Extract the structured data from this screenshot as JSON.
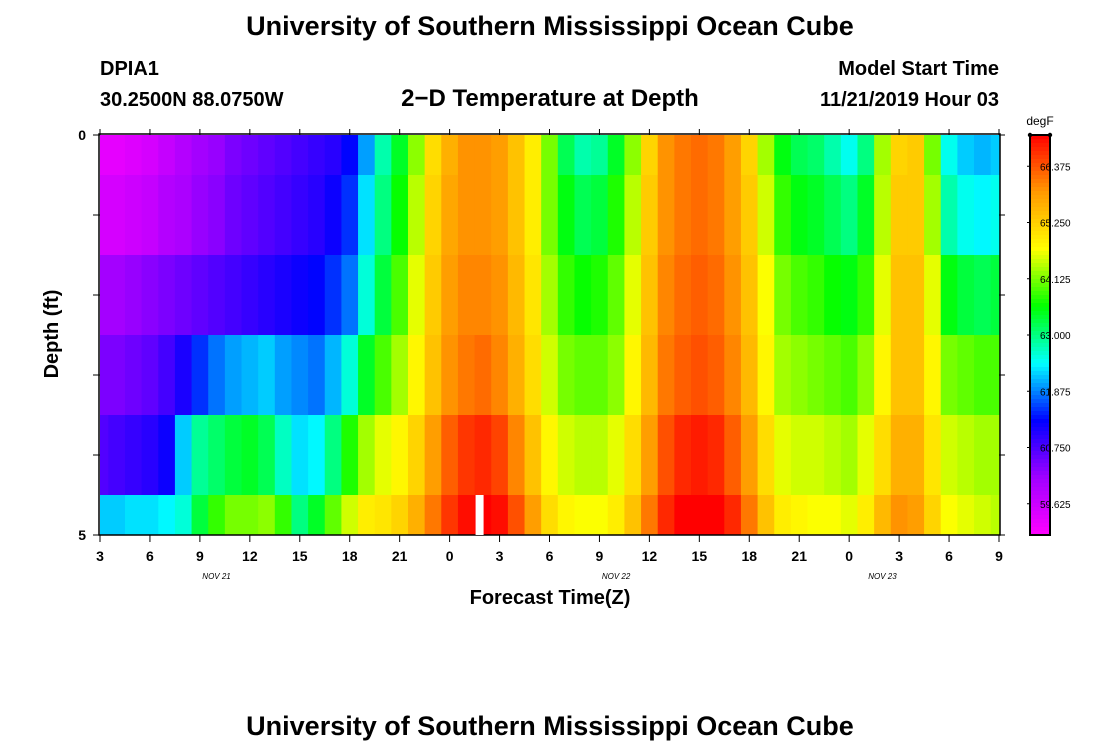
{
  "header": {
    "title": "University of Southern Mississippi Ocean Cube",
    "station": "DPIA1",
    "coords": "30.2500N 88.0750W",
    "subtitle": "2−D Temperature at Depth",
    "start_label": "Model Start Time",
    "start_value": "11/21/2019 Hour 03"
  },
  "footer": {
    "title": "University of Southern Mississippi Ocean Cube"
  },
  "colors": {
    "scale": [
      "#ff00ff",
      "#a000ff",
      "#0000ff",
      "#00ffff",
      "#00ff00",
      "#ffff00",
      "#ff9900",
      "#ff0000"
    ]
  },
  "chart_data": {
    "type": "heatmap",
    "title": "2−D Temperature at Depth",
    "xlabel": "Forecast Time(Z)",
    "ylabel": "Depth (ft)",
    "x_tick_labels": [
      "3",
      "6",
      "9",
      "12",
      "15",
      "18",
      "21",
      "0",
      "3",
      "6",
      "9",
      "12",
      "15",
      "18",
      "21",
      "0",
      "3",
      "6",
      "9"
    ],
    "date_labels": [
      {
        "label": "NOV  21",
        "at_hour": 10
      },
      {
        "label": "NOV  22",
        "at_hour": 34
      },
      {
        "label": "NOV  23",
        "at_hour": 50
      }
    ],
    "x_hours": [
      3,
      4,
      5,
      6,
      7,
      8,
      9,
      10,
      11,
      12,
      13,
      14,
      15,
      16,
      17,
      18,
      19,
      20,
      21,
      22,
      23,
      24,
      25,
      26,
      27,
      28,
      29,
      30,
      31,
      32,
      33,
      34,
      35,
      36,
      37,
      38,
      39,
      40,
      41,
      42,
      43,
      44,
      45,
      46,
      47,
      48,
      49,
      50,
      51,
      52,
      53,
      54,
      55,
      56,
      57
    ],
    "xlim": [
      3,
      57
    ],
    "y_tick_labels": [
      "0",
      "5"
    ],
    "ylim": [
      0,
      5
    ],
    "depth_rows": [
      0,
      1,
      2,
      3,
      4,
      5
    ],
    "colorbar": {
      "unit": "degF",
      "min": 59.0,
      "max": 67.0,
      "ticks": [
        66.375,
        65.25,
        64.125,
        63.0,
        61.875,
        60.75,
        59.625
      ]
    },
    "marker": {
      "hour": 25.8,
      "depth": 5
    },
    "values": [
      [
        59.3,
        59.3,
        59.4,
        59.5,
        59.7,
        59.9,
        60.1,
        60.2,
        60.4,
        60.5,
        60.6,
        60.7,
        60.8,
        60.9,
        61.0,
        61.3,
        62.0,
        62.8,
        63.4,
        64.2,
        65.1,
        65.6,
        65.9,
        65.9,
        65.8,
        65.4,
        64.9,
        64.1,
        63.2,
        62.8,
        62.9,
        63.4,
        64.2,
        65.2,
        65.9,
        66.1,
        66.2,
        66.1,
        65.8,
        65.2,
        64.3,
        63.5,
        63.2,
        63.1,
        62.8,
        62.5,
        63.0,
        64.3,
        65.2,
        65.3,
        64.1,
        62.5,
        62.2,
        62.1,
        62.2
      ],
      [
        59.5,
        59.5,
        59.6,
        59.7,
        59.9,
        60.0,
        60.2,
        60.3,
        60.5,
        60.6,
        60.7,
        60.8,
        60.9,
        61.0,
        61.2,
        61.5,
        62.3,
        63.0,
        63.6,
        64.4,
        65.2,
        65.7,
        65.9,
        65.9,
        65.8,
        65.4,
        64.9,
        64.1,
        63.5,
        63.2,
        63.3,
        63.7,
        64.4,
        65.3,
        65.9,
        66.1,
        66.2,
        66.1,
        65.8,
        65.3,
        64.5,
        63.8,
        63.5,
        63.4,
        63.2,
        63.0,
        63.4,
        64.4,
        65.3,
        65.3,
        64.3,
        62.8,
        62.5,
        62.4,
        62.5
      ],
      [
        60.1,
        60.1,
        60.2,
        60.3,
        60.4,
        60.5,
        60.6,
        60.7,
        60.8,
        60.9,
        61.0,
        61.1,
        61.2,
        61.3,
        61.5,
        61.8,
        62.6,
        63.3,
        63.9,
        64.6,
        65.3,
        65.8,
        66.0,
        66.0,
        65.9,
        65.5,
        65.0,
        64.3,
        63.8,
        63.6,
        63.7,
        64.0,
        64.6,
        65.4,
        66.0,
        66.2,
        66.3,
        66.2,
        65.9,
        65.4,
        64.7,
        64.1,
        63.9,
        63.8,
        63.6,
        63.5,
        63.8,
        64.6,
        65.4,
        65.4,
        64.6,
        63.5,
        63.3,
        63.2,
        63.3
      ],
      [
        60.4,
        60.4,
        60.5,
        60.6,
        60.8,
        61.1,
        61.5,
        61.8,
        62.0,
        62.1,
        62.2,
        62.0,
        61.9,
        61.8,
        62.1,
        62.6,
        63.4,
        63.9,
        64.3,
        64.8,
        65.4,
        65.9,
        66.1,
        66.2,
        66.0,
        65.6,
        65.1,
        64.5,
        64.1,
        64.0,
        64.0,
        64.2,
        64.8,
        65.5,
        66.1,
        66.3,
        66.4,
        66.3,
        66.0,
        65.5,
        64.8,
        64.3,
        64.2,
        64.1,
        64.0,
        63.9,
        64.2,
        64.8,
        65.4,
        65.4,
        64.8,
        64.1,
        64.0,
        63.9,
        63.9
      ],
      [
        60.7,
        60.8,
        60.9,
        61.0,
        61.2,
        62.2,
        62.9,
        63.1,
        63.3,
        63.4,
        63.2,
        62.7,
        62.3,
        62.4,
        63.0,
        63.7,
        64.3,
        64.6,
        64.8,
        65.2,
        65.8,
        66.3,
        66.6,
        66.7,
        66.5,
        66.0,
        65.4,
        64.8,
        64.5,
        64.4,
        64.4,
        64.6,
        65.1,
        65.8,
        66.4,
        66.7,
        66.8,
        66.7,
        66.3,
        65.8,
        65.1,
        64.6,
        64.5,
        64.5,
        64.4,
        64.3,
        64.6,
        65.1,
        65.6,
        65.6,
        65.0,
        64.5,
        64.4,
        64.3,
        64.3
      ],
      [
        62.2,
        62.2,
        62.3,
        62.3,
        62.4,
        62.6,
        63.3,
        63.8,
        64.1,
        64.1,
        64.2,
        63.8,
        63.0,
        63.4,
        64.0,
        64.5,
        64.9,
        65.0,
        65.2,
        65.6,
        66.1,
        66.6,
        66.9,
        67.0,
        66.9,
        66.4,
        65.8,
        65.1,
        64.8,
        64.7,
        64.7,
        64.9,
        65.4,
        66.1,
        66.7,
        67.0,
        67.0,
        67.0,
        66.7,
        66.1,
        65.4,
        64.9,
        64.8,
        64.7,
        64.7,
        64.6,
        64.9,
        65.5,
        65.9,
        65.8,
        65.2,
        64.7,
        64.6,
        64.5,
        64.4
      ]
    ]
  }
}
